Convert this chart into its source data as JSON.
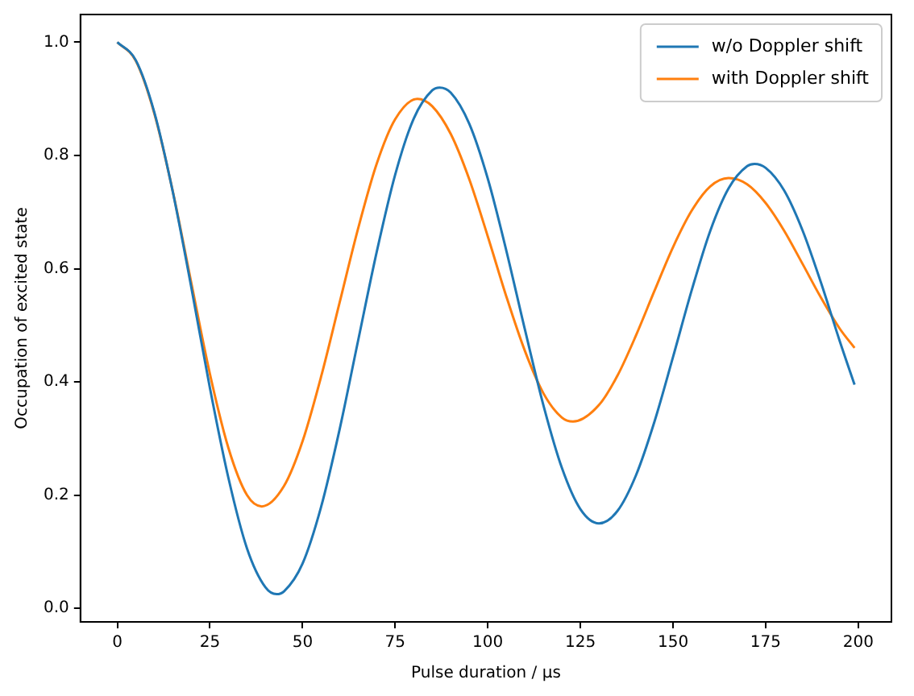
{
  "chart_data": {
    "type": "line",
    "xlabel": "Pulse duration / µs",
    "ylabel": "Occupation of excited state",
    "xlim": [
      -9.95,
      208.95
    ],
    "xticks": [
      0,
      25,
      50,
      75,
      100,
      125,
      150,
      175,
      200
    ],
    "ylim": [
      -0.024,
      1.049
    ],
    "yticks": [
      {
        "value": 0,
        "label": "0.0"
      },
      0.2,
      0.4,
      0.6,
      0.8,
      {
        "value": 1,
        "label": "1.0"
      }
    ],
    "legend": "top right",
    "grid": false,
    "marker": "none",
    "line_style": "solid",
    "series": [
      {
        "name": "w/o Doppler shift",
        "color": "#1f77b4",
        "x": [
          0,
          5,
          10,
          15,
          20,
          25,
          30,
          35,
          40,
          43,
          45,
          50,
          55,
          60,
          65,
          70,
          75,
          80,
          85,
          87,
          90,
          95,
          100,
          105,
          110,
          115,
          120,
          125,
          130,
          135,
          140,
          145,
          150,
          155,
          160,
          165,
          170,
          172,
          175,
          180,
          185,
          190,
          195,
          199
        ],
        "values": [
          1.0,
          0.968,
          0.876,
          0.735,
          0.566,
          0.389,
          0.23,
          0.106,
          0.037,
          0.025,
          0.03,
          0.079,
          0.179,
          0.316,
          0.473,
          0.629,
          0.766,
          0.865,
          0.915,
          0.92,
          0.911,
          0.856,
          0.759,
          0.632,
          0.493,
          0.359,
          0.248,
          0.175,
          0.15,
          0.172,
          0.235,
          0.33,
          0.444,
          0.561,
          0.666,
          0.742,
          0.781,
          0.785,
          0.778,
          0.738,
          0.667,
          0.574,
          0.472,
          0.395
        ]
      },
      {
        "name": "with Doppler shift",
        "color": "#ff7f0e",
        "x": [
          0,
          5,
          10,
          15,
          20,
          25,
          30,
          35,
          39,
          45,
          50,
          55,
          60,
          65,
          70,
          75,
          81,
          85,
          90,
          95,
          100,
          105,
          110,
          115,
          120,
          123,
          130,
          135,
          140,
          145,
          150,
          155,
          160,
          165,
          170,
          175,
          180,
          185,
          190,
          195,
          199
        ],
        "values": [
          1.0,
          0.967,
          0.874,
          0.736,
          0.574,
          0.414,
          0.283,
          0.2,
          0.18,
          0.216,
          0.295,
          0.409,
          0.54,
          0.671,
          0.785,
          0.864,
          0.9,
          0.887,
          0.838,
          0.758,
          0.657,
          0.551,
          0.455,
          0.38,
          0.337,
          0.33,
          0.359,
          0.411,
          0.482,
          0.561,
          0.638,
          0.702,
          0.745,
          0.76,
          0.749,
          0.716,
          0.667,
          0.608,
          0.548,
          0.494,
          0.46
        ]
      }
    ]
  }
}
